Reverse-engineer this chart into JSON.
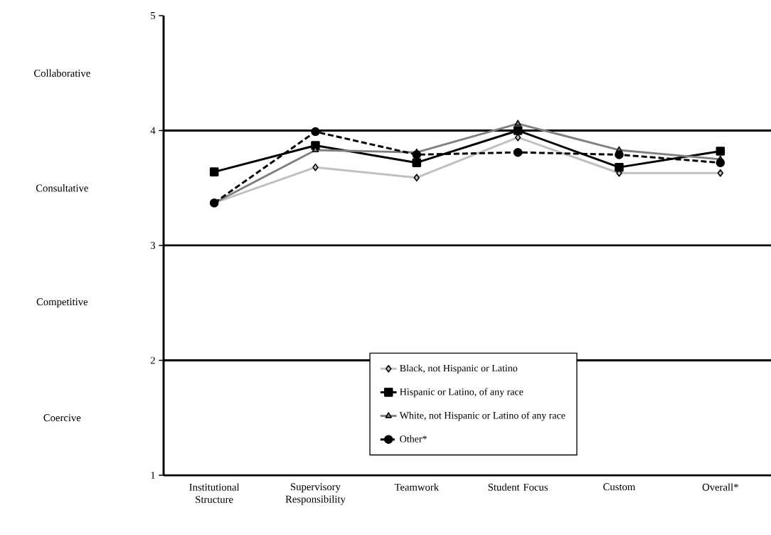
{
  "chart_data": {
    "type": "line",
    "categories": [
      "Institutional Structure",
      "Supervisory Responsibility",
      "Teamwork",
      "Student Focus",
      "Custom",
      "Overall*"
    ],
    "series": [
      {
        "name": "Black, not Hispanic or Latino",
        "color": "#c0c0c0",
        "marker": "diamond",
        "line_style": "solid",
        "values": [
          3.37,
          3.68,
          3.59,
          3.94,
          3.63,
          3.63
        ]
      },
      {
        "name": "Hispanic or Latino, of any race",
        "color": "#000000",
        "marker": "square",
        "line_style": "solid",
        "values": [
          3.64,
          3.87,
          3.72,
          4.0,
          3.68,
          3.82
        ]
      },
      {
        "name": "White, not Hispanic or Latino of any race",
        "color": "#808080",
        "marker": "triangle",
        "line_style": "solid",
        "values": [
          3.37,
          3.83,
          3.81,
          4.06,
          3.83,
          3.75
        ]
      },
      {
        "name": "Other*",
        "color": "#000000",
        "marker": "circle",
        "line_style": "dashed",
        "values": [
          3.37,
          3.99,
          3.79,
          3.81,
          3.79,
          3.72
        ]
      }
    ],
    "ylim": [
      1,
      5
    ],
    "yticks": [
      1,
      2,
      3,
      4,
      5
    ],
    "annotations": [
      "Coercive",
      "Competitive",
      "Consultative",
      "Collaborative"
    ],
    "grid": "y",
    "legend": "bottom"
  }
}
